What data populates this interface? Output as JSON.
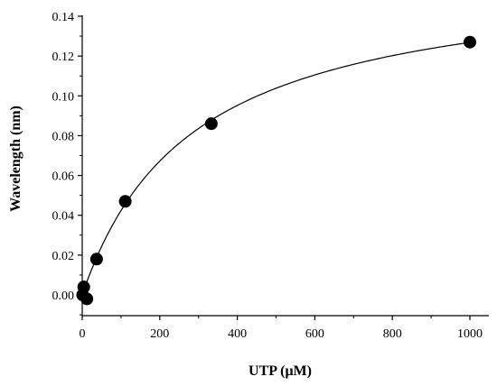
{
  "chart_data": {
    "type": "scatter",
    "xlabel": "UTP (μM)",
    "ylabel": "Wavelength (nm)",
    "xlim": [
      0,
      1050
    ],
    "ylim": [
      -0.005,
      0.14
    ],
    "xticks": [
      0,
      200,
      400,
      600,
      800,
      1000
    ],
    "yticks": [
      0.0,
      0.02,
      0.04,
      0.06,
      0.08,
      0.1,
      0.12,
      0.14
    ],
    "xtick_labels": [
      "0",
      "200",
      "400",
      "600",
      "800",
      "1000"
    ],
    "ytick_labels": [
      "0.00",
      "0.02",
      "0.04",
      "0.06",
      "0.08",
      "0.10",
      "0.12",
      "0.14"
    ],
    "grid": false,
    "series": [
      {
        "x": [
          1,
          4,
          12,
          37,
          111,
          333,
          1000
        ],
        "y": [
          0.0,
          0.004,
          -0.002,
          0.018,
          0.047,
          0.086,
          0.127
        ]
      }
    ],
    "fit_curve": {
      "model": "hyperbolic",
      "vmax": 0.163,
      "km": 285
    },
    "colors": {
      "points": "#000000",
      "curve": "#000000",
      "axes": "#000000"
    }
  }
}
